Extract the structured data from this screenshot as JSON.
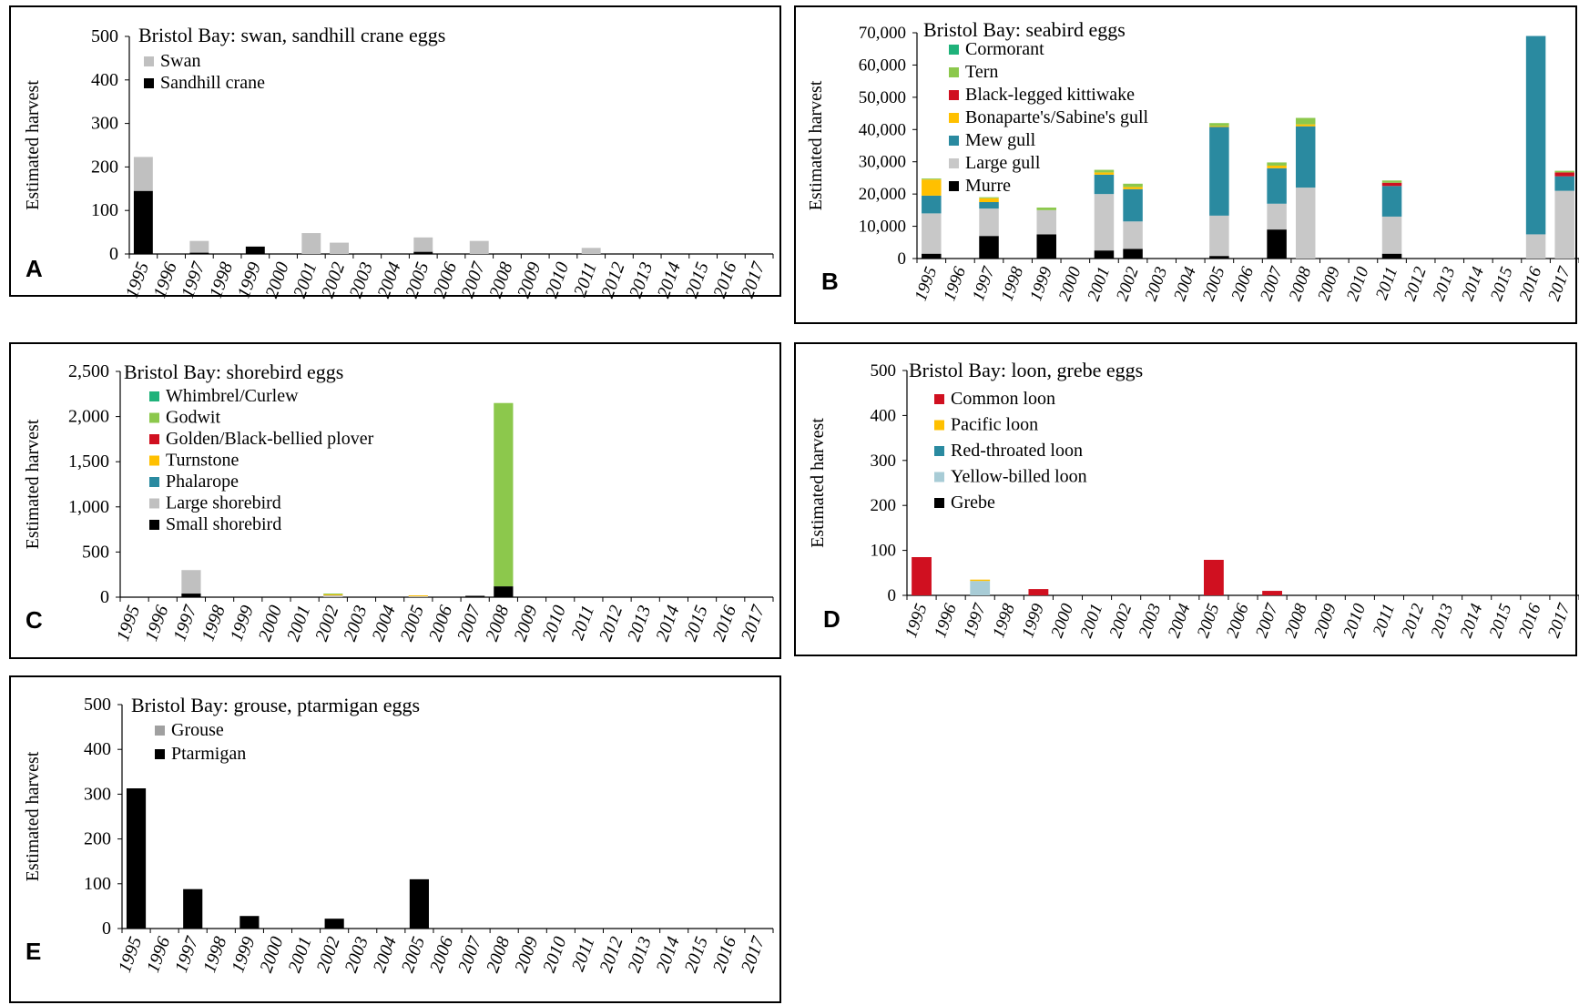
{
  "chart_data": [
    {
      "id": "A",
      "panel_letter": "A",
      "type": "bar",
      "stacked": true,
      "title": "Bristol Bay: swan, sandhill crane eggs",
      "ylabel": "Estimated harvest",
      "ylim": [
        0,
        500
      ],
      "yticks": [
        0,
        100,
        200,
        300,
        400,
        500
      ],
      "ytick_labels": [
        "0",
        "100",
        "200",
        "300",
        "400",
        "500"
      ],
      "categories": [
        "1995",
        "1996",
        "1997",
        "1998",
        "1999",
        "2000",
        "2001",
        "2002",
        "2003",
        "2004",
        "2005",
        "2006",
        "2007",
        "2008",
        "2009",
        "2010",
        "2011",
        "2012",
        "2013",
        "2014",
        "2015",
        "2016",
        "2017"
      ],
      "series": [
        {
          "name": "Sandhill crane",
          "color": "#000000",
          "values": [
            145,
            0,
            3,
            0,
            17,
            0,
            0,
            0,
            0,
            0,
            5,
            0,
            0,
            0,
            0,
            0,
            0,
            0,
            0,
            0,
            0,
            0,
            0
          ]
        },
        {
          "name": "Swan",
          "color": "#c0c0c0",
          "values": [
            78,
            0,
            27,
            0,
            0,
            0,
            48,
            26,
            0,
            0,
            33,
            0,
            30,
            0,
            0,
            0,
            14,
            0,
            0,
            0,
            0,
            0,
            0
          ]
        }
      ],
      "legend": [
        {
          "name": "Swan",
          "color": "#c0c0c0"
        },
        {
          "name": "Sandhill crane",
          "color": "#000000"
        }
      ]
    },
    {
      "id": "B",
      "panel_letter": "B",
      "type": "bar",
      "stacked": true,
      "title": "Bristol Bay: seabird eggs",
      "ylabel": "Estimated harvest",
      "ylim": [
        0,
        70000
      ],
      "yticks": [
        0,
        10000,
        20000,
        30000,
        40000,
        50000,
        60000,
        70000
      ],
      "ytick_labels": [
        "0",
        "10,000",
        "20,000",
        "30,000",
        "40,000",
        "50,000",
        "60,000",
        "70,000"
      ],
      "categories": [
        "1995",
        "1996",
        "1997",
        "1998",
        "1999",
        "2000",
        "2001",
        "2002",
        "2003",
        "2004",
        "2005",
        "2006",
        "2007",
        "2008",
        "2009",
        "2010",
        "2011",
        "2012",
        "2013",
        "2014",
        "2015",
        "2016",
        "2017"
      ],
      "series": [
        {
          "name": "Murre",
          "color": "#000000",
          "values": [
            1500,
            0,
            7000,
            0,
            7500,
            0,
            2500,
            3000,
            0,
            0,
            800,
            0,
            9000,
            0,
            0,
            0,
            1500,
            0,
            0,
            0,
            0,
            0,
            0
          ]
        },
        {
          "name": "Large gull",
          "color": "#c8c8c8",
          "values": [
            12500,
            0,
            8500,
            0,
            7500,
            0,
            17500,
            8500,
            0,
            0,
            12500,
            0,
            8000,
            22000,
            0,
            0,
            11500,
            0,
            0,
            0,
            0,
            7500,
            21000
          ]
        },
        {
          "name": "Mew gull",
          "color": "#2a8aa0",
          "values": [
            5500,
            0,
            2000,
            0,
            0,
            0,
            6000,
            10000,
            0,
            0,
            27500,
            0,
            11000,
            19000,
            0,
            0,
            9500,
            0,
            0,
            0,
            0,
            61500,
            4500
          ]
        },
        {
          "name": "Bonaparte's/Sabine's gull",
          "color": "#ffc000",
          "values": [
            5000,
            0,
            1200,
            0,
            0,
            0,
            700,
            700,
            0,
            0,
            300,
            0,
            800,
            600,
            0,
            0,
            0,
            0,
            0,
            0,
            0,
            0,
            0
          ]
        },
        {
          "name": "Black-legged kittiwake",
          "color": "#d01020",
          "values": [
            0,
            0,
            0,
            0,
            0,
            0,
            0,
            0,
            0,
            0,
            0,
            0,
            0,
            0,
            0,
            0,
            1000,
            0,
            0,
            0,
            0,
            0,
            1200
          ]
        },
        {
          "name": "Tern",
          "color": "#8cc84c",
          "values": [
            300,
            0,
            300,
            0,
            800,
            0,
            800,
            1000,
            0,
            0,
            900,
            0,
            1000,
            2000,
            0,
            0,
            700,
            0,
            0,
            0,
            0,
            0,
            500
          ]
        },
        {
          "name": "Cormorant",
          "color": "#1fb27a",
          "values": [
            0,
            0,
            0,
            0,
            0,
            0,
            0,
            0,
            0,
            0,
            0,
            0,
            0,
            0,
            0,
            0,
            0,
            0,
            0,
            0,
            0,
            0,
            0
          ]
        }
      ],
      "legend": [
        {
          "name": "Cormorant",
          "color": "#1fb27a"
        },
        {
          "name": "Tern",
          "color": "#8cc84c"
        },
        {
          "name": "Black-legged kittiwake",
          "color": "#d01020"
        },
        {
          "name": "Bonaparte's/Sabine's gull",
          "color": "#ffc000"
        },
        {
          "name": "Mew gull",
          "color": "#2a8aa0"
        },
        {
          "name": "Large gull",
          "color": "#c8c8c8"
        },
        {
          "name": "Murre",
          "color": "#000000"
        }
      ]
    },
    {
      "id": "C",
      "panel_letter": "C",
      "type": "bar",
      "stacked": true,
      "title": "Bristol Bay: shorebird eggs",
      "ylabel": "Estimated harvest",
      "ylim": [
        0,
        2500
      ],
      "yticks": [
        0,
        500,
        1000,
        1500,
        2000,
        2500
      ],
      "ytick_labels": [
        "0",
        "500",
        "1,000",
        "1,500",
        "2,000",
        "2,500"
      ],
      "categories": [
        "1995",
        "1996",
        "1997",
        "1998",
        "1999",
        "2000",
        "2001",
        "2002",
        "2003",
        "2004",
        "2005",
        "2006",
        "2007",
        "2008",
        "2009",
        "2010",
        "2011",
        "2012",
        "2013",
        "2014",
        "2015",
        "2016",
        "2017"
      ],
      "series": [
        {
          "name": "Small shorebird",
          "color": "#000000",
          "values": [
            0,
            0,
            40,
            0,
            0,
            0,
            0,
            0,
            0,
            0,
            0,
            0,
            15,
            120,
            0,
            0,
            0,
            0,
            0,
            0,
            0,
            0,
            0
          ]
        },
        {
          "name": "Large shorebird",
          "color": "#c0c0c0",
          "values": [
            0,
            0,
            260,
            0,
            0,
            0,
            0,
            20,
            0,
            0,
            10,
            0,
            0,
            0,
            0,
            0,
            0,
            0,
            0,
            0,
            0,
            0,
            0
          ]
        },
        {
          "name": "Phalarope",
          "color": "#2a8aa0",
          "values": [
            0,
            0,
            0,
            0,
            0,
            0,
            0,
            0,
            0,
            0,
            0,
            0,
            0,
            0,
            0,
            0,
            0,
            0,
            0,
            0,
            0,
            0,
            0
          ]
        },
        {
          "name": "Turnstone",
          "color": "#ffc000",
          "values": [
            0,
            0,
            0,
            0,
            0,
            0,
            0,
            10,
            0,
            0,
            10,
            0,
            0,
            0,
            0,
            0,
            0,
            0,
            0,
            0,
            0,
            0,
            0
          ]
        },
        {
          "name": "Golden/Black-bellied plover",
          "color": "#d01020",
          "values": [
            0,
            0,
            0,
            0,
            0,
            0,
            0,
            0,
            0,
            0,
            0,
            0,
            0,
            0,
            0,
            0,
            0,
            0,
            0,
            0,
            0,
            0,
            0
          ]
        },
        {
          "name": "Godwit",
          "color": "#8cc84c",
          "values": [
            0,
            0,
            0,
            0,
            0,
            0,
            0,
            10,
            0,
            0,
            0,
            0,
            0,
            2030,
            0,
            0,
            0,
            0,
            0,
            0,
            0,
            0,
            0
          ]
        },
        {
          "name": "Whimbrel/Curlew",
          "color": "#1fb27a",
          "values": [
            0,
            0,
            0,
            0,
            0,
            0,
            0,
            0,
            0,
            0,
            0,
            0,
            0,
            0,
            0,
            0,
            0,
            0,
            0,
            0,
            0,
            0,
            0
          ]
        }
      ],
      "legend": [
        {
          "name": "Whimbrel/Curlew",
          "color": "#1fb27a"
        },
        {
          "name": "Godwit",
          "color": "#8cc84c"
        },
        {
          "name": "Golden/Black-bellied plover",
          "color": "#d01020"
        },
        {
          "name": "Turnstone",
          "color": "#ffc000"
        },
        {
          "name": "Phalarope",
          "color": "#2a8aa0"
        },
        {
          "name": "Large shorebird",
          "color": "#c0c0c0"
        },
        {
          "name": "Small shorebird",
          "color": "#000000"
        }
      ]
    },
    {
      "id": "D",
      "panel_letter": "D",
      "type": "bar",
      "stacked": true,
      "title": "Bristol Bay: loon, grebe eggs",
      "ylabel": "Estimated harvest",
      "ylim": [
        0,
        500
      ],
      "yticks": [
        0,
        100,
        200,
        300,
        400,
        500
      ],
      "ytick_labels": [
        "0",
        "100",
        "200",
        "300",
        "400",
        "500"
      ],
      "categories": [
        "1995",
        "1996",
        "1997",
        "1998",
        "1999",
        "2000",
        "2001",
        "2002",
        "2003",
        "2004",
        "2005",
        "2006",
        "2007",
        "2008",
        "2009",
        "2010",
        "2011",
        "2012",
        "2013",
        "2014",
        "2015",
        "2016",
        "2017"
      ],
      "series": [
        {
          "name": "Grebe",
          "color": "#000000",
          "values": [
            0,
            0,
            0,
            0,
            0,
            0,
            0,
            0,
            0,
            0,
            0,
            0,
            0,
            0,
            0,
            0,
            0,
            0,
            0,
            0,
            0,
            0,
            0
          ]
        },
        {
          "name": "Yellow-billed loon",
          "color": "#a8ccd6",
          "values": [
            0,
            0,
            32,
            0,
            0,
            0,
            0,
            0,
            0,
            0,
            0,
            0,
            0,
            0,
            0,
            0,
            0,
            0,
            0,
            0,
            0,
            0,
            0
          ]
        },
        {
          "name": "Red-throated loon",
          "color": "#2a8aa0",
          "values": [
            0,
            0,
            0,
            0,
            0,
            0,
            0,
            0,
            0,
            0,
            0,
            0,
            0,
            0,
            0,
            0,
            0,
            0,
            0,
            0,
            0,
            0,
            0
          ]
        },
        {
          "name": "Pacific loon",
          "color": "#ffc000",
          "values": [
            0,
            0,
            3,
            0,
            0,
            0,
            0,
            0,
            0,
            0,
            0,
            0,
            0,
            0,
            0,
            0,
            0,
            0,
            0,
            0,
            0,
            0,
            0
          ]
        },
        {
          "name": "Common loon",
          "color": "#d01020",
          "values": [
            85,
            0,
            0,
            0,
            14,
            0,
            0,
            0,
            0,
            0,
            79,
            0,
            10,
            0,
            0,
            0,
            0,
            0,
            0,
            0,
            0,
            0,
            0
          ]
        }
      ],
      "legend": [
        {
          "name": "Common loon",
          "color": "#d01020"
        },
        {
          "name": "Pacific loon",
          "color": "#ffc000"
        },
        {
          "name": "Red-throated loon",
          "color": "#2a8aa0"
        },
        {
          "name": "Yellow-billed loon",
          "color": "#a8ccd6"
        },
        {
          "name": "Grebe",
          "color": "#000000"
        }
      ]
    },
    {
      "id": "E",
      "panel_letter": "E",
      "type": "bar",
      "stacked": true,
      "title": "Bristol Bay: grouse, ptarmigan eggs",
      "ylabel": "Estimated harvest",
      "ylim": [
        0,
        500
      ],
      "yticks": [
        0,
        100,
        200,
        300,
        400,
        500
      ],
      "ytick_labels": [
        "0",
        "100",
        "200",
        "300",
        "400",
        "500"
      ],
      "categories": [
        "1995",
        "1996",
        "1997",
        "1998",
        "1999",
        "2000",
        "2001",
        "2002",
        "2003",
        "2004",
        "2005",
        "2006",
        "2007",
        "2008",
        "2009",
        "2010",
        "2011",
        "2012",
        "2013",
        "2014",
        "2015",
        "2016",
        "2017"
      ],
      "series": [
        {
          "name": "Ptarmigan",
          "color": "#000000",
          "values": [
            313,
            0,
            88,
            0,
            28,
            0,
            0,
            22,
            0,
            0,
            110,
            0,
            0,
            0,
            0,
            0,
            0,
            0,
            0,
            0,
            0,
            0,
            0
          ]
        },
        {
          "name": "Grouse",
          "color": "#a0a0a0",
          "values": [
            0,
            0,
            0,
            0,
            0,
            0,
            0,
            0,
            0,
            0,
            0,
            0,
            0,
            0,
            0,
            0,
            0,
            0,
            0,
            0,
            0,
            0,
            0
          ]
        }
      ],
      "legend": [
        {
          "name": "Grouse",
          "color": "#a0a0a0"
        },
        {
          "name": "Ptarmigan",
          "color": "#000000"
        }
      ]
    }
  ]
}
